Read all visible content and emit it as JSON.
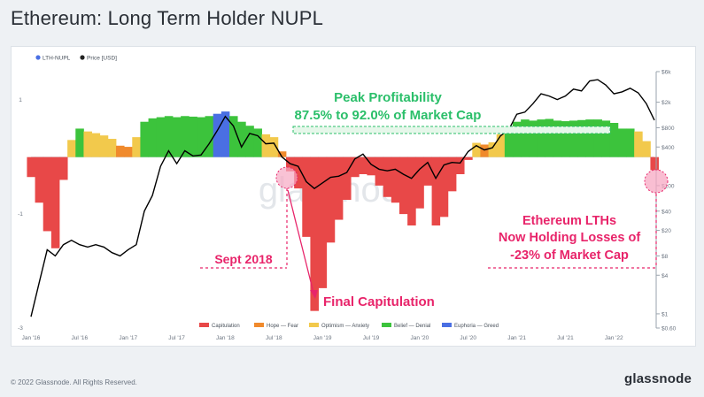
{
  "title": "Ethereum: Long Term Holder NUPL",
  "footer": {
    "copyright": "© 2022 Glassnode. All Rights Reserved.",
    "brand": "glassnode"
  },
  "watermark": "glassnode",
  "colors": {
    "price": "#000000",
    "zero_line": "#d9dde2",
    "annotation": "#e8246a",
    "capitulation": "#e84848",
    "hope_fear": "#f08a2c",
    "optimism_anxiety": "#f2c94c",
    "belief_denial": "#3cc33c",
    "euphoria_greed": "#4a6fe3"
  },
  "chart_data": {
    "type": "area",
    "top_legend": [
      {
        "label": "LTH-NUPL",
        "color": "#4a6fe3"
      },
      {
        "label": "Price [USD]",
        "color": "#222222"
      }
    ],
    "x_ticks": [
      "Jan '16",
      "Jul '16",
      "Jan '17",
      "Jul '17",
      "Jan '18",
      "Jul '18",
      "Jan '19",
      "Jul '19",
      "Jan '20",
      "Jul '20",
      "Jan '21",
      "Jul '21",
      "Jan '22"
    ],
    "x_range": [
      "2016-01",
      "2022-06"
    ],
    "y_left": {
      "label": "",
      "ticks": [
        "1",
        "-1",
        "-3"
      ],
      "range": [
        -3,
        1.5
      ]
    },
    "y_right": {
      "label": "",
      "scale": "log",
      "ticks": [
        "$6k",
        "$2k",
        "$800",
        "$400",
        "$100",
        "$40",
        "$20",
        "$8",
        "$4",
        "$1",
        "$0.60"
      ],
      "range": [
        0.6,
        6000
      ]
    },
    "zones_legend": [
      {
        "label": "Capitulation",
        "color": "#e84848"
      },
      {
        "label": "Hope — Fear",
        "color": "#f08a2c"
      },
      {
        "label": "Optimism — Anxiety",
        "color": "#f2c94c"
      },
      {
        "label": "Belief — Denial",
        "color": "#3cc33c"
      },
      {
        "label": "Euphoria — Greed",
        "color": "#4a6fe3"
      }
    ],
    "series": [
      {
        "name": "LTH-NUPL",
        "points": [
          [
            "2016-01",
            -0.35
          ],
          [
            "2016-02",
            -0.8
          ],
          [
            "2016-03",
            -1.3
          ],
          [
            "2016-04",
            -1.6
          ],
          [
            "2016-05",
            -0.4
          ],
          [
            "2016-06",
            0.3
          ],
          [
            "2016-07",
            0.5
          ],
          [
            "2016-08",
            0.45
          ],
          [
            "2016-09",
            0.42
          ],
          [
            "2016-10",
            0.38
          ],
          [
            "2016-11",
            0.32
          ],
          [
            "2016-12",
            0.2
          ],
          [
            "2017-01",
            0.18
          ],
          [
            "2017-02",
            0.35
          ],
          [
            "2017-03",
            0.62
          ],
          [
            "2017-04",
            0.68
          ],
          [
            "2017-05",
            0.7
          ],
          [
            "2017-06",
            0.72
          ],
          [
            "2017-07",
            0.7
          ],
          [
            "2017-08",
            0.72
          ],
          [
            "2017-09",
            0.71
          ],
          [
            "2017-10",
            0.7
          ],
          [
            "2017-11",
            0.72
          ],
          [
            "2017-12",
            0.76
          ],
          [
            "2018-01",
            0.8
          ],
          [
            "2018-02",
            0.72
          ],
          [
            "2018-03",
            0.62
          ],
          [
            "2018-04",
            0.55
          ],
          [
            "2018-05",
            0.5
          ],
          [
            "2018-06",
            0.4
          ],
          [
            "2018-07",
            0.35
          ],
          [
            "2018-08",
            0.1
          ],
          [
            "2018-09",
            -0.25
          ],
          [
            "2018-10",
            -0.55
          ],
          [
            "2018-11",
            -1.4
          ],
          [
            "2018-12",
            -2.7
          ],
          [
            "2019-01",
            -2.3
          ],
          [
            "2019-02",
            -1.5
          ],
          [
            "2019-03",
            -1.1
          ],
          [
            "2019-04",
            -0.75
          ],
          [
            "2019-05",
            -0.35
          ],
          [
            "2019-06",
            -0.3
          ],
          [
            "2019-07",
            -0.32
          ],
          [
            "2019-08",
            -0.5
          ],
          [
            "2019-09",
            -0.7
          ],
          [
            "2019-10",
            -0.8
          ],
          [
            "2019-11",
            -1.0
          ],
          [
            "2019-12",
            -1.2
          ],
          [
            "2020-01",
            -0.9
          ],
          [
            "2020-02",
            -0.5
          ],
          [
            "2020-03",
            -1.2
          ],
          [
            "2020-04",
            -1.05
          ],
          [
            "2020-05",
            -0.6
          ],
          [
            "2020-06",
            -0.3
          ],
          [
            "2020-07",
            -0.05
          ],
          [
            "2020-08",
            0.25
          ],
          [
            "2020-09",
            0.22
          ],
          [
            "2020-10",
            0.26
          ],
          [
            "2020-11",
            0.4
          ],
          [
            "2020-12",
            0.52
          ],
          [
            "2021-01",
            0.62
          ],
          [
            "2021-02",
            0.66
          ],
          [
            "2021-03",
            0.64
          ],
          [
            "2021-04",
            0.66
          ],
          [
            "2021-05",
            0.67
          ],
          [
            "2021-06",
            0.64
          ],
          [
            "2021-07",
            0.63
          ],
          [
            "2021-08",
            0.64
          ],
          [
            "2021-09",
            0.65
          ],
          [
            "2021-10",
            0.66
          ],
          [
            "2021-11",
            0.66
          ],
          [
            "2021-12",
            0.64
          ],
          [
            "2022-01",
            0.6
          ],
          [
            "2022-02",
            0.5
          ],
          [
            "2022-03",
            0.5
          ],
          [
            "2022-04",
            0.45
          ],
          [
            "2022-05",
            0.28
          ],
          [
            "2022-06",
            -0.23
          ]
        ]
      },
      {
        "name": "Price [USD]",
        "points": [
          [
            "2016-01",
            0.9
          ],
          [
            "2016-02",
            3
          ],
          [
            "2016-03",
            10
          ],
          [
            "2016-04",
            8
          ],
          [
            "2016-05",
            12
          ],
          [
            "2016-06",
            14
          ],
          [
            "2016-07",
            12
          ],
          [
            "2016-08",
            11
          ],
          [
            "2016-09",
            12
          ],
          [
            "2016-10",
            11
          ],
          [
            "2016-11",
            9
          ],
          [
            "2016-12",
            8
          ],
          [
            "2017-01",
            10
          ],
          [
            "2017-02",
            12
          ],
          [
            "2017-03",
            40
          ],
          [
            "2017-04",
            70
          ],
          [
            "2017-05",
            200
          ],
          [
            "2017-06",
            350
          ],
          [
            "2017-07",
            220
          ],
          [
            "2017-08",
            350
          ],
          [
            "2017-09",
            290
          ],
          [
            "2017-10",
            300
          ],
          [
            "2017-11",
            450
          ],
          [
            "2017-12",
            720
          ],
          [
            "2018-01",
            1200
          ],
          [
            "2018-02",
            850
          ],
          [
            "2018-03",
            400
          ],
          [
            "2018-04",
            650
          ],
          [
            "2018-05",
            600
          ],
          [
            "2018-06",
            450
          ],
          [
            "2018-07",
            460
          ],
          [
            "2018-08",
            280
          ],
          [
            "2018-09",
            220
          ],
          [
            "2018-10",
            200
          ],
          [
            "2018-11",
            115
          ],
          [
            "2018-12",
            90
          ],
          [
            "2019-01",
            110
          ],
          [
            "2019-02",
            135
          ],
          [
            "2019-03",
            140
          ],
          [
            "2019-04",
            160
          ],
          [
            "2019-05",
            260
          ],
          [
            "2019-06",
            310
          ],
          [
            "2019-07",
            215
          ],
          [
            "2019-08",
            180
          ],
          [
            "2019-09",
            170
          ],
          [
            "2019-10",
            180
          ],
          [
            "2019-11",
            150
          ],
          [
            "2019-12",
            130
          ],
          [
            "2020-01",
            180
          ],
          [
            "2020-02",
            230
          ],
          [
            "2020-03",
            130
          ],
          [
            "2020-04",
            210
          ],
          [
            "2020-05",
            230
          ],
          [
            "2020-06",
            225
          ],
          [
            "2020-07",
            340
          ],
          [
            "2020-08",
            420
          ],
          [
            "2020-09",
            360
          ],
          [
            "2020-10",
            390
          ],
          [
            "2020-11",
            600
          ],
          [
            "2020-12",
            740
          ],
          [
            "2021-01",
            1300
          ],
          [
            "2021-02",
            1400
          ],
          [
            "2021-03",
            1900
          ],
          [
            "2021-04",
            2700
          ],
          [
            "2021-05",
            2500
          ],
          [
            "2021-06",
            2200
          ],
          [
            "2021-07",
            2500
          ],
          [
            "2021-08",
            3200
          ],
          [
            "2021-09",
            3000
          ],
          [
            "2021-10",
            4300
          ],
          [
            "2021-11",
            4500
          ],
          [
            "2021-12",
            3700
          ],
          [
            "2022-01",
            2700
          ],
          [
            "2022-02",
            2900
          ],
          [
            "2022-03",
            3300
          ],
          [
            "2022-04",
            2800
          ],
          [
            "2022-05",
            1900
          ],
          [
            "2022-06",
            1050
          ]
        ]
      }
    ],
    "annotations": {
      "peak_title": "Peak Profitability",
      "peak_range": "87.5% to 92.0% of Market Cap",
      "sept": "Sept 2018",
      "final": "Final Capitulation",
      "now_line1": "Ethereum LTHs",
      "now_line2": "Now Holding Losses of",
      "now_line3": "-23% of Market Cap"
    }
  }
}
